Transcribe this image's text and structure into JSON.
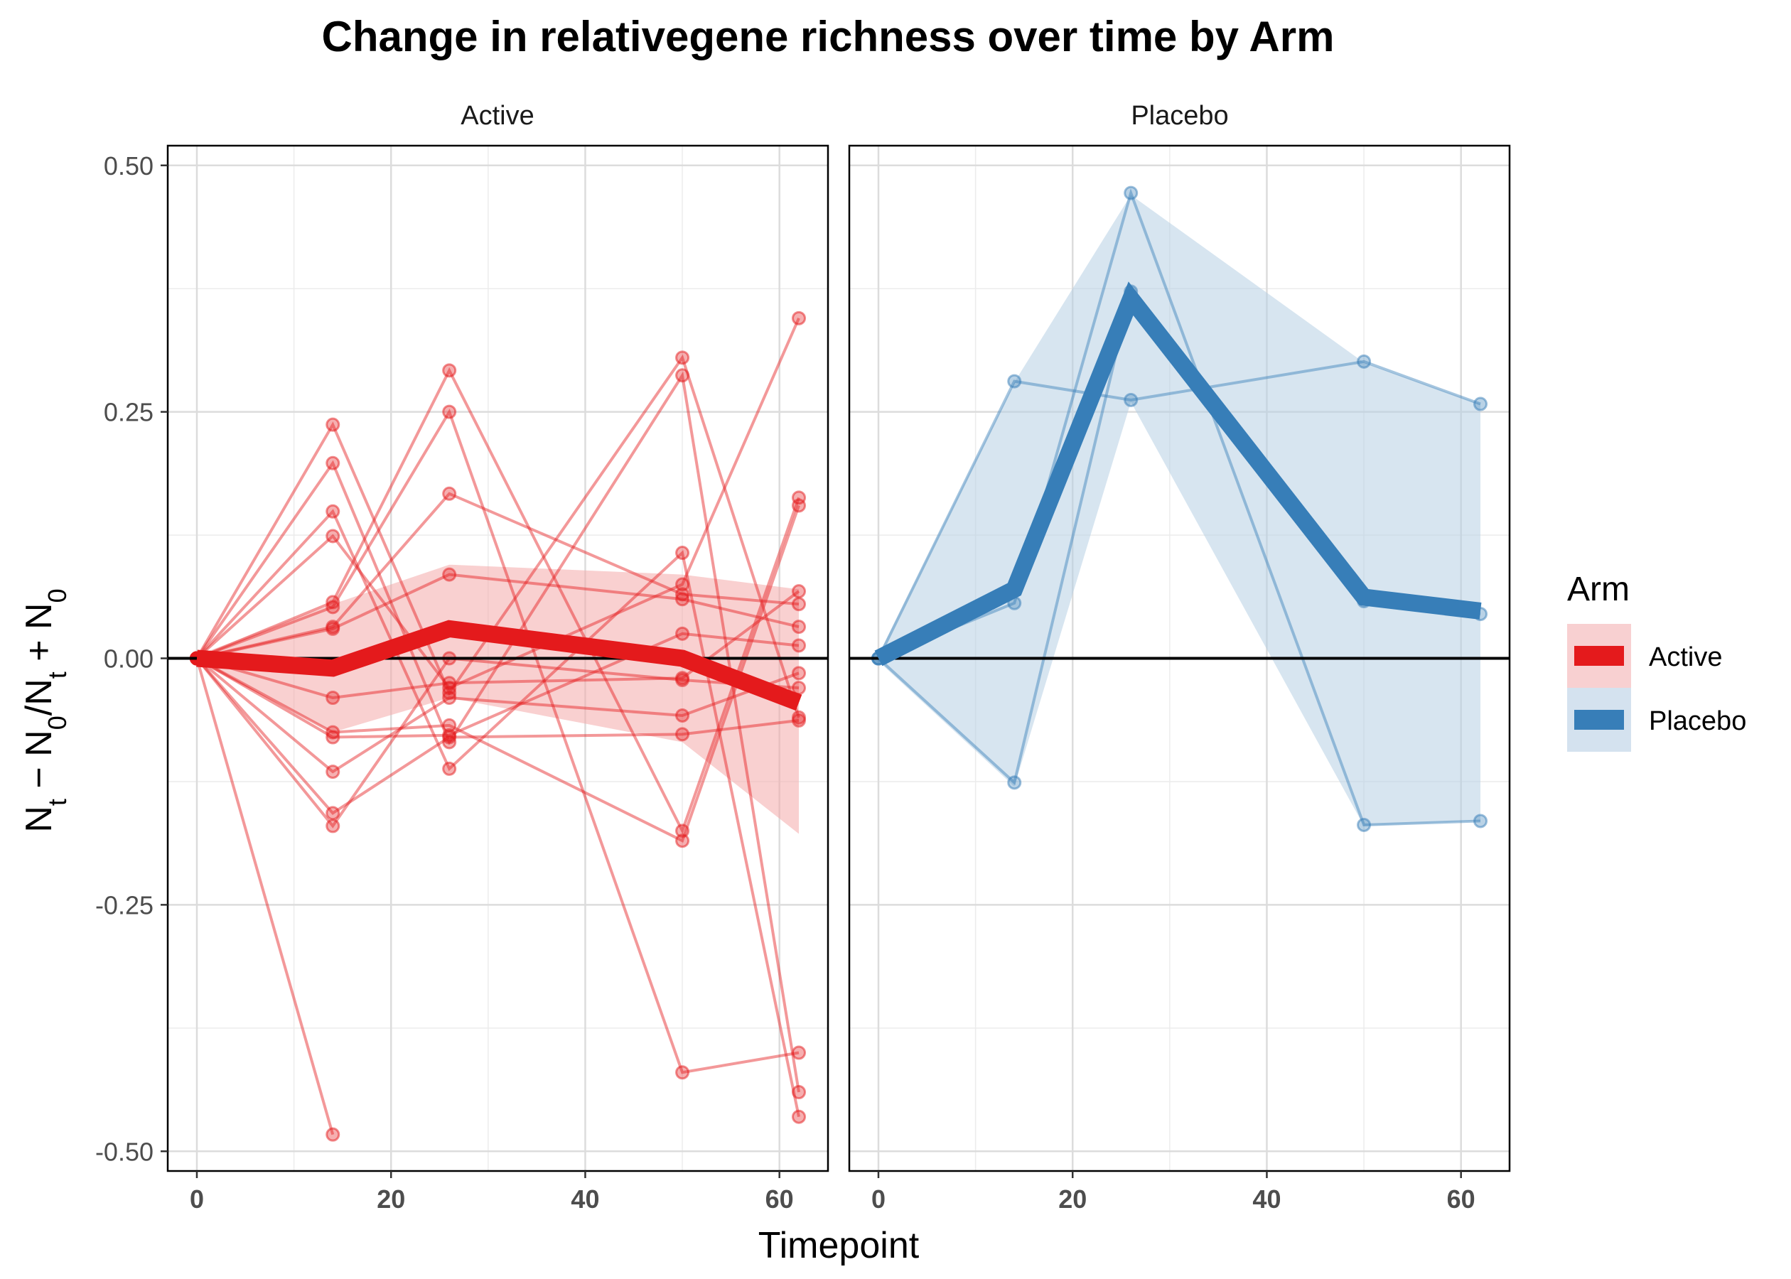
{
  "chart_data": {
    "type": "line",
    "title": "Change in relativegene richness over time by Arm",
    "xlabel": "Timepoint",
    "ylabel": "N_t − N_0/N_t + N_0",
    "ylim": [
      -0.52,
      0.52
    ],
    "xlim": [
      -3,
      65
    ],
    "yticks": [
      -0.5,
      -0.25,
      0.0,
      0.25,
      0.5
    ],
    "ytick_labels": [
      "-0.50",
      "-0.25",
      "0.00",
      "0.25",
      "0.50"
    ],
    "xticks": [
      0,
      20,
      40,
      60
    ],
    "xtick_labels": [
      "0",
      "20",
      "40",
      "60"
    ],
    "grid": true,
    "reference_line_y": 0,
    "legend": {
      "title": "Arm",
      "position": "right",
      "entries": [
        {
          "label": "Active",
          "color": "#E41A1C",
          "fill": "#F8D0D1"
        },
        {
          "label": "Placebo",
          "color": "#377EB8",
          "fill": "#D4E2EF"
        }
      ]
    },
    "panels": [
      {
        "label": "Active",
        "color": "#E41A1C",
        "ribbon_color": "#F4A9AA",
        "mean_line": {
          "x": [
            0,
            14,
            26,
            50,
            62
          ],
          "y": [
            0.0,
            -0.01,
            0.03,
            0.0,
            -0.045
          ]
        },
        "ribbon": {
          "x": [
            0,
            14,
            26,
            50,
            62
          ],
          "lower": [
            -0.003,
            -0.075,
            -0.04,
            -0.085,
            -0.178
          ],
          "upper": [
            0.003,
            0.055,
            0.095,
            0.085,
            0.07
          ]
        },
        "subjects": [
          {
            "x": [
              0,
              14,
              26,
              50,
              62
            ],
            "y": [
              0,
              0.237,
              -0.035,
              0.305,
              -0.06
            ]
          },
          {
            "x": [
              0,
              14,
              26,
              50,
              62
            ],
            "y": [
              0,
              0.198,
              -0.085,
              0.287,
              -0.44
            ]
          },
          {
            "x": [
              0,
              14,
              26,
              50,
              62
            ],
            "y": [
              0,
              0.149,
              -0.112,
              0.107,
              -0.465
            ]
          },
          {
            "x": [
              0,
              14,
              26,
              50,
              62
            ],
            "y": [
              0,
              0.124,
              -0.03,
              0.075,
              0.345
            ]
          },
          {
            "x": [
              0,
              14,
              26,
              50,
              62
            ],
            "y": [
              0,
              0.057,
              0.292,
              -0.175,
              0.163
            ]
          },
          {
            "x": [
              0,
              14,
              26,
              50,
              62
            ],
            "y": [
              0,
              0.052,
              0.25,
              -0.42,
              -0.4
            ]
          },
          {
            "x": [
              0,
              14,
              26,
              50,
              62
            ],
            "y": [
              0,
              0.032,
              0.167,
              0.065,
              0.055
            ]
          },
          {
            "x": [
              0,
              14,
              26,
              50,
              62
            ],
            "y": [
              0,
              0.03,
              0.085,
              0.06,
              0.032
            ]
          },
          {
            "x": [
              0,
              14,
              26,
              50,
              62
            ],
            "y": [
              0,
              -0.04,
              -0.025,
              -0.02,
              0.068
            ]
          },
          {
            "x": [
              0,
              14,
              26,
              50,
              62
            ],
            "y": [
              0,
              -0.075,
              -0.068,
              -0.185,
              0.155
            ]
          },
          {
            "x": [
              0,
              14,
              26,
              50,
              62
            ],
            "y": [
              0,
              -0.08,
              -0.078,
              0.025,
              0.013
            ]
          },
          {
            "x": [
              0,
              14,
              26,
              50,
              62
            ],
            "y": [
              0,
              -0.115,
              -0.04,
              -0.058,
              -0.015
            ]
          },
          {
            "x": [
              0,
              14,
              26,
              50,
              62
            ],
            "y": [
              0,
              -0.157,
              -0.08,
              -0.077,
              -0.063
            ]
          },
          {
            "x": [
              0,
              14,
              26,
              50,
              62
            ],
            "y": [
              0,
              -0.17,
              0.0,
              -0.022,
              -0.03
            ]
          },
          {
            "x": [
              0,
              14
            ],
            "y": [
              0,
              -0.483
            ]
          }
        ]
      },
      {
        "label": "Placebo",
        "color": "#377EB8",
        "ribbon_color": "#B7CFE4",
        "mean_line": {
          "x": [
            0,
            14,
            26,
            50,
            62
          ],
          "y": [
            0.0,
            0.07,
            0.365,
            0.062,
            0.048
          ]
        },
        "ribbon": {
          "x": [
            0,
            14,
            26,
            50,
            62
          ],
          "lower": [
            -0.003,
            -0.13,
            0.26,
            -0.17,
            -0.165
          ],
          "upper": [
            0.003,
            0.28,
            0.47,
            0.3,
            0.258
          ]
        },
        "subjects": [
          {
            "x": [
              0,
              14,
              26,
              50,
              62
            ],
            "y": [
              0,
              0.281,
              0.262,
              0.301,
              0.258
            ]
          },
          {
            "x": [
              0,
              14,
              26,
              50,
              62
            ],
            "y": [
              0,
              0.056,
              0.472,
              -0.169,
              -0.165
            ]
          },
          {
            "x": [
              0,
              14,
              26,
              50,
              62
            ],
            "y": [
              0,
              -0.126,
              0.372,
              0.058,
              0.045
            ]
          }
        ]
      }
    ]
  }
}
